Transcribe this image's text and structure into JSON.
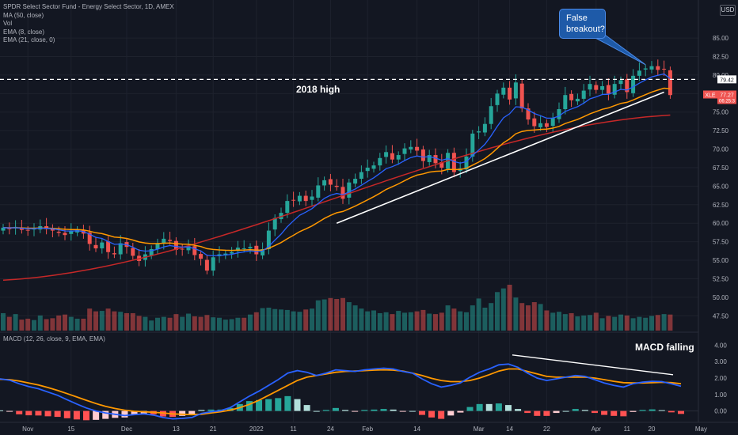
{
  "legend": {
    "title": "SPDR Select Sector Fund - Energy Select Sector, 1D, AMEX",
    "items": [
      "MA (50, close)",
      "Vol",
      "EMA (8, close)",
      "EMA (21, close, 0)"
    ]
  },
  "macd_legend": "MACD (12, 26, close, 9, EMA, EMA)",
  "currency": "USD",
  "annotations": {
    "callout": "False breakout?",
    "high_label": "2018 high",
    "macd_label": "MACD falling"
  },
  "price_tags": {
    "level": "79.42",
    "last": "77.27",
    "ticker": "XLE",
    "timer": "06:25:3"
  },
  "colors": {
    "up": "#26a69a",
    "down": "#ef5350",
    "ma50": "#c62828",
    "ema8": "#2962ff",
    "ema21": "#ff9800",
    "macd": "#2962ff",
    "signal": "#ff9800",
    "bg": "#131722"
  },
  "chart_data": [
    {
      "type": "candlestick",
      "title": "SPDR Select Sector Fund - Energy Select Sector, 1D, AMEX",
      "ylim": [
        45.5,
        88
      ],
      "price_ticks": [
        "47.50",
        "50.00",
        "52.50",
        "55.00",
        "57.50",
        "60.00",
        "62.50",
        "65.00",
        "67.50",
        "70.00",
        "72.50",
        "75.00",
        "77.50",
        "80.00",
        "82.50",
        "85.00"
      ],
      "x_ticks": [
        "Nov",
        "15",
        "Dec",
        "13",
        "21",
        "2022",
        "11",
        "24",
        "Feb",
        "14",
        "Mar",
        "14",
        "22",
        "Apr",
        "11",
        "20",
        "May"
      ],
      "horizontal_level": 79.42,
      "closes": [
        59.4,
        59.2,
        59.5,
        59.1,
        59.0,
        59.3,
        59.6,
        59.2,
        59.0,
        58.7,
        58.4,
        58.9,
        59.1,
        58.6,
        57.2,
        56.6,
        57.4,
        56.1,
        55.8,
        57.3,
        56.8,
        55.6,
        54.9,
        55.8,
        56.5,
        57.2,
        57.9,
        57.6,
        56.4,
        56.5,
        56.9,
        55.7,
        55.2,
        53.6,
        55.4,
        55.8,
        55.9,
        56.1,
        56.7,
        56.6,
        56.8,
        55.8,
        56.5,
        59.0,
        60.7,
        61.4,
        63.0,
        63.1,
        63.7,
        63.0,
        63.6,
        65.1,
        65.8,
        65.2,
        64.9,
        63.3,
        65.5,
        66.0,
        66.9,
        67.5,
        67.8,
        68.8,
        69.6,
        68.6,
        69.2,
        70.1,
        70.3,
        69.8,
        68.4,
        69.2,
        68.1,
        67.5,
        69.5,
        66.9,
        67.4,
        69.0,
        72.1,
        72.4,
        73.4,
        75.8,
        77.5,
        78.3,
        76.7,
        79.0,
        75.5,
        74.0,
        73.1,
        73.5,
        73.0,
        74.2,
        75.4,
        77.3,
        76.6,
        76.8,
        77.9,
        78.8,
        78.0,
        78.5,
        77.5,
        78.8,
        79.3,
        77.7,
        79.9,
        80.6,
        80.9,
        81.2,
        80.7,
        80.8,
        77.3
      ],
      "ma50_endpoints": {
        "start": 52.3,
        "end": 74.6
      },
      "trendline": {
        "start": 60.0,
        "end": 77.7
      },
      "volume_relative": [
        0.38,
        0.3,
        0.36,
        0.24,
        0.26,
        0.23,
        0.33,
        0.25,
        0.27,
        0.33,
        0.35,
        0.3,
        0.26,
        0.26,
        0.48,
        0.42,
        0.43,
        0.48,
        0.42,
        0.41,
        0.38,
        0.38,
        0.32,
        0.3,
        0.22,
        0.28,
        0.3,
        0.28,
        0.36,
        0.3,
        0.37,
        0.31,
        0.3,
        0.34,
        0.29,
        0.28,
        0.24,
        0.25,
        0.28,
        0.28,
        0.35,
        0.4,
        0.49,
        0.5,
        0.47,
        0.46,
        0.45,
        0.42,
        0.41,
        0.46,
        0.48,
        0.66,
        0.68,
        0.71,
        0.69,
        0.71,
        0.62,
        0.55,
        0.48,
        0.42,
        0.44,
        0.38,
        0.4,
        0.36,
        0.43,
        0.39,
        0.4,
        0.42,
        0.45,
        0.37,
        0.36,
        0.39,
        0.55,
        0.48,
        0.42,
        0.4,
        0.55,
        0.7,
        0.5,
        0.6,
        0.84,
        0.92,
        1.0,
        0.72,
        0.6,
        0.55,
        0.62,
        0.58,
        0.44,
        0.39,
        0.41,
        0.36,
        0.38,
        0.31,
        0.33,
        0.34,
        0.39,
        0.27,
        0.32,
        0.3,
        0.35,
        0.33,
        0.27,
        0.3,
        0.28,
        0.32,
        0.34,
        0.36,
        0.35
      ]
    },
    {
      "type": "line",
      "title": "MACD (12, 26, close, 9, EMA, EMA)",
      "ylim": [
        -0.5,
        4.4
      ],
      "y_ticks": [
        "0.00",
        "1.00",
        "2.00",
        "3.00",
        "4.00"
      ],
      "macd": [
        1.95,
        1.87,
        1.65,
        1.48,
        1.35,
        1.15,
        0.95,
        0.68,
        0.42,
        0.18,
        0.0,
        -0.12,
        -0.2,
        -0.28,
        -0.22,
        -0.18,
        -0.25,
        -0.4,
        -0.48,
        -0.45,
        -0.4,
        -0.15,
        -0.05,
        0.02,
        0.2,
        0.55,
        0.9,
        1.2,
        1.55,
        1.9,
        2.3,
        2.45,
        2.35,
        2.15,
        2.3,
        2.5,
        2.45,
        2.4,
        2.5,
        2.55,
        2.6,
        2.55,
        2.4,
        2.3,
        1.95,
        1.65,
        1.45,
        1.55,
        1.7,
        2.05,
        2.35,
        2.55,
        2.8,
        2.85,
        2.65,
        2.3,
        2.0,
        1.85,
        1.95,
        2.05,
        2.15,
        2.1,
        1.9,
        1.7,
        1.55,
        1.45,
        1.65,
        1.75,
        1.8,
        1.78,
        1.65,
        1.5
      ],
      "signal": [
        1.92,
        1.9,
        1.82,
        1.7,
        1.58,
        1.42,
        1.25,
        1.05,
        0.85,
        0.65,
        0.45,
        0.28,
        0.15,
        0.05,
        -0.02,
        -0.05,
        -0.08,
        -0.12,
        -0.18,
        -0.2,
        -0.22,
        -0.2,
        -0.12,
        -0.05,
        0.05,
        0.2,
        0.4,
        0.65,
        0.95,
        1.25,
        1.55,
        1.85,
        2.05,
        2.15,
        2.25,
        2.35,
        2.4,
        2.42,
        2.45,
        2.48,
        2.5,
        2.48,
        2.42,
        2.3,
        2.15,
        1.98,
        1.85,
        1.78,
        1.78,
        1.85,
        2.0,
        2.2,
        2.42,
        2.55,
        2.55,
        2.4,
        2.25,
        2.1,
        2.05,
        2.05,
        2.05,
        2.05,
        2.0,
        1.9,
        1.8,
        1.72,
        1.7,
        1.7,
        1.72,
        1.74,
        1.72,
        1.65
      ],
      "trend_line": {
        "start": 3.4,
        "end": 2.2
      }
    }
  ]
}
